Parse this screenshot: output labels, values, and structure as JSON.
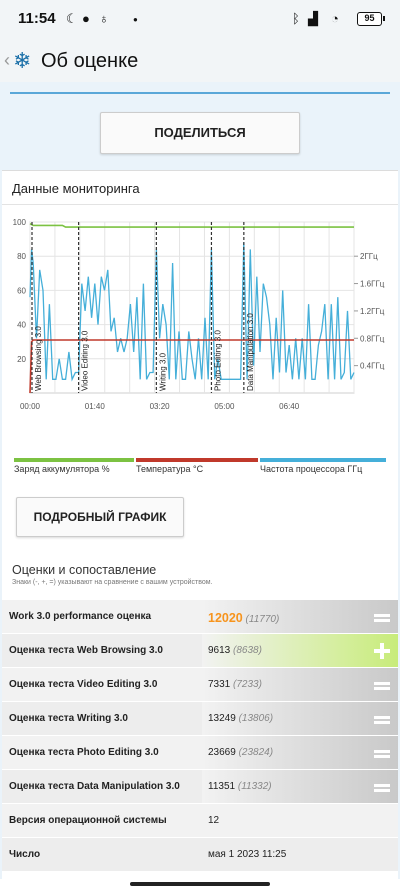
{
  "status": {
    "time": "11:54",
    "left_icons": [
      "moon-icon",
      "user-circle-icon",
      "lightbulb-icon",
      "dot-icon"
    ],
    "right_icons": [
      "bluetooth-icon",
      "signal-icon",
      "wifi-icon"
    ],
    "battery": "95"
  },
  "header": {
    "title": "Об оценке"
  },
  "share_label": "ПОДЕЛИТЬСЯ",
  "monitoring": {
    "title": "Данные мониторинга",
    "detail_button": "ПОДРОБНЫЙ ГРАФИК",
    "legend": [
      {
        "label": "Заряд аккумулятора %",
        "color": "#7cc242"
      },
      {
        "label": "Температура °C",
        "color": "#c0392b"
      },
      {
        "label": "Частота процессора ГГц",
        "color": "#45afd9"
      }
    ]
  },
  "chart_data": {
    "type": "line",
    "x_ticks": [
      "00:00",
      "01:40",
      "03:20",
      "05:00",
      "06:40"
    ],
    "y_left_ticks": [
      "20",
      "40",
      "60",
      "80",
      "100"
    ],
    "y_left_range": [
      0,
      100
    ],
    "y_right_ticks": [
      "0.4ГГц",
      "0.8ГГц",
      "1.2ГГц",
      "1.6ГГц",
      "2ГГц"
    ],
    "grid": true,
    "markers": [
      {
        "label": "Web Browsing 3.0",
        "t": 0.0
      },
      {
        "label": "Video Editing 3.0",
        "t": 0.15
      },
      {
        "label": "Writing 3.0",
        "t": 0.39
      },
      {
        "label": "Photo Editing 3.0",
        "t": 0.56
      },
      {
        "label": "Data Manipulation 3.0",
        "t": 0.66
      }
    ],
    "series": [
      {
        "name": "Заряд аккумулятора %",
        "color": "#7cc242",
        "x": [
          0,
          0.01,
          0.1,
          0.11,
          1.0
        ],
        "y": [
          99,
          98,
          98,
          97,
          97
        ]
      },
      {
        "name": "Температура °C",
        "color": "#c0392b",
        "x": [
          0,
          0.005,
          0.01,
          1.0
        ],
        "y": [
          0,
          30,
          31,
          31
        ]
      },
      {
        "name": "Частота процессора ГГц",
        "color": "#45afd9",
        "x": [
          0,
          0.005,
          0.01,
          0.02,
          0.03,
          0.04,
          0.05,
          0.06,
          0.07,
          0.08,
          0.09,
          0.1,
          0.11,
          0.12,
          0.13,
          0.14,
          0.15,
          0.16,
          0.17,
          0.18,
          0.19,
          0.2,
          0.21,
          0.22,
          0.23,
          0.24,
          0.25,
          0.26,
          0.27,
          0.28,
          0.29,
          0.3,
          0.31,
          0.32,
          0.33,
          0.34,
          0.35,
          0.36,
          0.37,
          0.38,
          0.39,
          0.4,
          0.41,
          0.42,
          0.43,
          0.44,
          0.45,
          0.46,
          0.47,
          0.48,
          0.49,
          0.5,
          0.51,
          0.52,
          0.53,
          0.54,
          0.55,
          0.56,
          0.57,
          0.58,
          0.59,
          0.6,
          0.61,
          0.62,
          0.63,
          0.64,
          0.65,
          0.66,
          0.67,
          0.68,
          0.69,
          0.7,
          0.71,
          0.72,
          0.73,
          0.74,
          0.75,
          0.76,
          0.77,
          0.78,
          0.79,
          0.8,
          0.81,
          0.82,
          0.83,
          0.84,
          0.85,
          0.86,
          0.87,
          0.88,
          0.89,
          0.9,
          0.91,
          0.92,
          0.93,
          0.94,
          0.95,
          0.96,
          0.97,
          0.98,
          0.99,
          1.0
        ],
        "y": [
          1.4,
          2.1,
          1.9,
          0.8,
          1.8,
          1.5,
          0.2,
          1.3,
          0.2,
          0.2,
          0.5,
          0.2,
          0.2,
          0.6,
          0.2,
          0.3,
          0.3,
          1.6,
          1.2,
          1.7,
          1.1,
          1.6,
          1.0,
          1.7,
          1.5,
          1.8,
          0.9,
          1.1,
          0.6,
          0.8,
          0.6,
          0.8,
          1.3,
          0.6,
          1.4,
          0.2,
          1.6,
          0.2,
          0.3,
          0.3,
          2.1,
          0.8,
          1.3,
          1.0,
          0.2,
          1.9,
          0.2,
          0.9,
          0.2,
          0.2,
          0.9,
          0.5,
          0.2,
          0.8,
          0.2,
          1.1,
          0.2,
          2.1,
          0.2,
          0.5,
          0.2,
          0.2,
          0.2,
          0.2,
          0.2,
          0.2,
          0.2,
          2.2,
          0.2,
          2.1,
          0.4,
          1.7,
          0.6,
          1.6,
          1.4,
          1.0,
          0.2,
          1.1,
          0.3,
          1.5,
          0.3,
          0.7,
          0.2,
          0.8,
          0.2,
          0.8,
          0.2,
          1.3,
          0.2,
          0.2,
          0.7,
          0.9,
          1.3,
          0.2,
          1.3,
          0.2,
          1.4,
          0.2,
          0.3,
          1.2,
          0.2,
          0.3
        ]
      }
    ]
  },
  "scores": {
    "title": "Оценки и сопоставление",
    "note": "Знаки (-, +, =) указывают на сравнение с вашим устройством.",
    "rows": [
      {
        "label": "Work 3.0 performance оценка",
        "value": "12020",
        "ref": "(11770)",
        "cmp": "equal",
        "big": true
      },
      {
        "label": "Оценка теста Web Browsing 3.0",
        "value": "9613",
        "ref": "(8638)",
        "cmp": "plus"
      },
      {
        "label": "Оценка теста Video Editing 3.0",
        "value": "7331",
        "ref": "(7233)",
        "cmp": "equal"
      },
      {
        "label": "Оценка теста Writing 3.0",
        "value": "13249",
        "ref": "(13806)",
        "cmp": "equal"
      },
      {
        "label": "Оценка теста Photo Editing 3.0",
        "value": "23669",
        "ref": "(23824)",
        "cmp": "equal"
      },
      {
        "label": "Оценка теста Data Manipulation 3.0",
        "value": "11351",
        "ref": "(11332)",
        "cmp": "equal"
      },
      {
        "label": "Версия операционной системы",
        "value": "12",
        "ref": ""
      },
      {
        "label": "Число",
        "value": "мая 1 2023 11:25",
        "ref": ""
      }
    ]
  }
}
